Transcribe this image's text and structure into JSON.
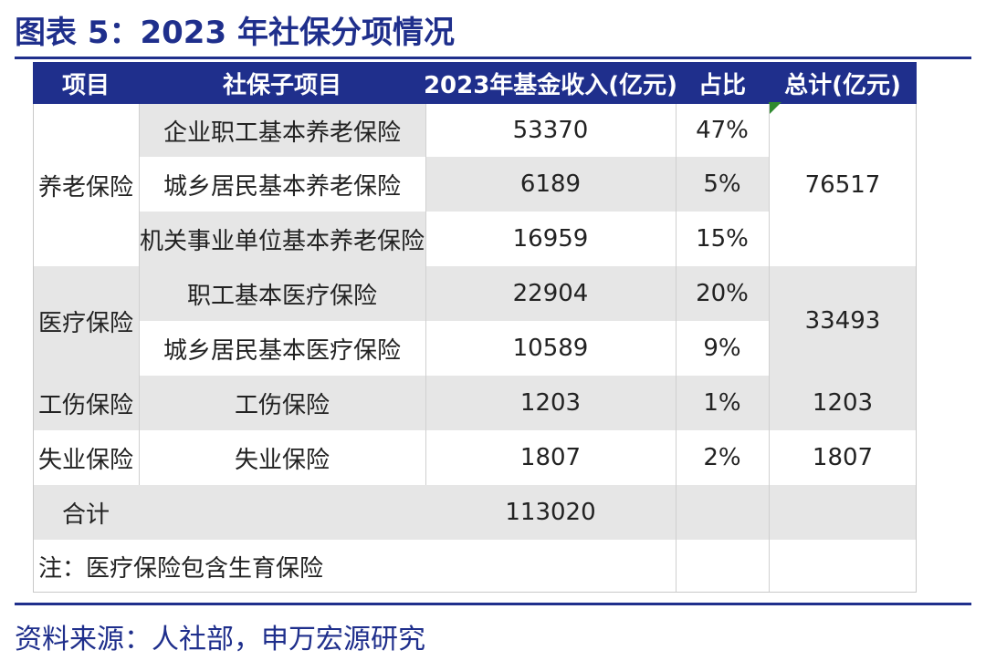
{
  "title": "图表 5：2023 年社保分项情况",
  "header": {
    "item": "项目",
    "sub_item": "社保子项目",
    "income": "2023年基金收入(亿元)",
    "share": "占比",
    "total": "总计(亿元)"
  },
  "groups": {
    "pension": {
      "label": "养老保险",
      "total": "76517"
    },
    "medical": {
      "label": "医疗保险",
      "total": "33493"
    },
    "injury": {
      "label": "工伤保险",
      "total": "1203"
    },
    "unemployment": {
      "label": "失业保险",
      "total": "1807"
    }
  },
  "rows": [
    {
      "sub": "企业职工基本养老保险",
      "income": "53370",
      "share": "47%"
    },
    {
      "sub": "城乡居民基本养老保险",
      "income": "6189",
      "share": "5%"
    },
    {
      "sub": "机关事业单位基本养老保险",
      "income": "16959",
      "share": "15%"
    },
    {
      "sub": "职工基本医疗保险",
      "income": "22904",
      "share": "20%"
    },
    {
      "sub": "城乡居民基本医疗保险",
      "income": "10589",
      "share": "9%"
    },
    {
      "sub": "工伤保险",
      "income": "1203",
      "share": "1%"
    },
    {
      "sub": "失业保险",
      "income": "1807",
      "share": "2%"
    }
  ],
  "total_row": {
    "label": "合计",
    "income": "113020"
  },
  "note": "注：医疗保险包含生育保险",
  "source": "资料来源：人社部，申万宏源研究"
}
